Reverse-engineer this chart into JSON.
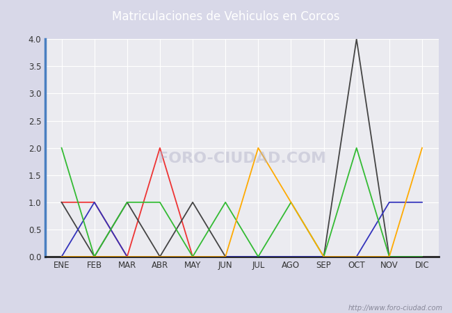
{
  "title": "Matriculaciones de Vehiculos en Corcos",
  "months": [
    "ENE",
    "FEB",
    "MAR",
    "ABR",
    "MAY",
    "JUN",
    "JUL",
    "AGO",
    "SEP",
    "OCT",
    "NOV",
    "DIC"
  ],
  "series": {
    "2024": [
      1,
      1,
      0,
      2,
      0,
      null,
      null,
      null,
      null,
      null,
      null,
      null
    ],
    "2023": [
      1,
      0,
      1,
      0,
      1,
      0,
      0,
      0,
      0,
      4,
      0,
      0
    ],
    "2022": [
      0,
      1,
      0,
      0,
      0,
      0,
      0,
      0,
      0,
      0,
      1,
      1
    ],
    "2021": [
      2,
      0,
      1,
      1,
      0,
      1,
      0,
      1,
      0,
      2,
      0,
      0
    ],
    "2020": [
      0,
      0,
      0,
      0,
      0,
      0,
      2,
      1,
      0,
      0,
      0,
      2
    ]
  },
  "colors": {
    "2024": "#ee3333",
    "2023": "#444444",
    "2022": "#3333bb",
    "2021": "#33bb33",
    "2020": "#ffaa00"
  },
  "ylim": [
    0,
    4.0
  ],
  "yticks": [
    0.0,
    0.5,
    1.0,
    1.5,
    2.0,
    2.5,
    3.0,
    3.5,
    4.0
  ],
  "title_bg_color": "#4a7fc1",
  "title_color": "white",
  "plot_bg_color": "#ebebf0",
  "fig_bg_color": "#d8d8e8",
  "border_color_left": "#4a7fc1",
  "border_color_bottom": "#222222",
  "grid_color": "white",
  "watermark": "http://www.foro-ciudad.com",
  "watermark_overlay": "FORO-CIUDAD.COM"
}
